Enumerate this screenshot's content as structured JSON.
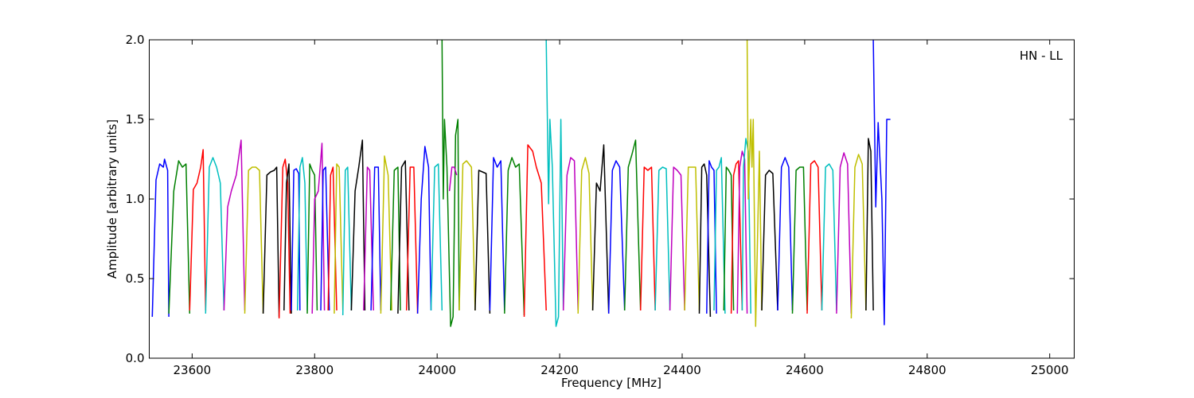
{
  "chart_data": {
    "type": "line",
    "title": "",
    "xlabel": "Frequency [MHz]",
    "ylabel": "Amplitude [arbitrary units]",
    "xlim": [
      23530,
      25040
    ],
    "ylim": [
      0.0,
      2.0
    ],
    "xticks": [
      "23600",
      "23800",
      "24000",
      "24200",
      "24400",
      "24600",
      "24800",
      "25000"
    ],
    "yticks": [
      "0.0",
      "0.5",
      "1.0",
      "1.5",
      "2.0"
    ],
    "grid": false,
    "annotation": "HN - LL",
    "colors": [
      "#0000ff",
      "#008000",
      "#ff0000",
      "#00bfbf",
      "#bf00bf",
      "#bfbf00",
      "#000000"
    ],
    "channel_width_mhz": 18.5,
    "series": [
      {
        "color": "#0000ff",
        "x": [
          23535,
          23541,
          23547,
          23553,
          23555,
          23560,
          23562
        ],
        "y": [
          0.26,
          1.12,
          1.22,
          1.2,
          1.25,
          1.18,
          0.26
        ]
      },
      {
        "color": "#008000",
        "x": [
          23562,
          23570,
          23578,
          23584,
          23590,
          23596
        ],
        "y": [
          0.28,
          1.05,
          1.24,
          1.2,
          1.22,
          0.28
        ]
      },
      {
        "color": "#ff0000",
        "x": [
          23596,
          23602,
          23608,
          23614,
          23618,
          23622
        ],
        "y": [
          0.3,
          1.06,
          1.1,
          1.2,
          1.31,
          0.3
        ]
      },
      {
        "color": "#00bfbf",
        "x": [
          23622,
          23628,
          23634,
          23640,
          23646,
          23652
        ],
        "y": [
          0.28,
          1.2,
          1.26,
          1.2,
          1.1,
          0.3
        ]
      },
      {
        "color": "#bf00bf",
        "x": [
          23652,
          23658,
          23664,
          23672,
          23680,
          23686
        ],
        "y": [
          0.3,
          0.95,
          1.05,
          1.15,
          1.37,
          0.3
        ]
      },
      {
        "color": "#bfbf00",
        "x": [
          23686,
          23692,
          23698,
          23704,
          23710,
          23716
        ],
        "y": [
          0.28,
          1.18,
          1.2,
          1.2,
          1.18,
          0.28
        ]
      },
      {
        "color": "#000000",
        "x": [
          23716,
          23722,
          23728,
          23734,
          23738,
          23742
        ],
        "y": [
          0.28,
          1.15,
          1.17,
          1.18,
          1.2,
          0.26
        ]
      },
      {
        "color": "#ff0000",
        "x": [
          23742,
          23748,
          23752,
          23756,
          23760
        ],
        "y": [
          0.25,
          1.2,
          1.25,
          1.1,
          0.28
        ]
      },
      {
        "color": "#000000",
        "x": [
          23750,
          23754,
          23758,
          23762
        ],
        "y": [
          0.3,
          1.1,
          1.22,
          0.28
        ]
      },
      {
        "color": "#0000ff",
        "x": [
          23762,
          23766,
          23770,
          23774,
          23776
        ],
        "y": [
          0.3,
          1.18,
          1.19,
          1.16,
          0.3
        ]
      },
      {
        "color": "#00bfbf",
        "x": [
          23772,
          23776,
          23780,
          23784,
          23788
        ],
        "y": [
          0.3,
          1.2,
          1.26,
          1.1,
          0.3
        ]
      },
      {
        "color": "#008000",
        "x": [
          23788,
          23792,
          23796,
          23800,
          23804
        ],
        "y": [
          0.28,
          1.22,
          1.18,
          1.15,
          0.3
        ]
      },
      {
        "color": "#bf00bf",
        "x": [
          23796,
          23800,
          23806,
          23812,
          23816
        ],
        "y": [
          0.28,
          1.0,
          1.05,
          1.35,
          0.3
        ]
      },
      {
        "color": "#0000ff",
        "x": [
          23810,
          23814,
          23818,
          23824
        ],
        "y": [
          0.3,
          1.18,
          1.2,
          0.3
        ]
      },
      {
        "color": "#ff0000",
        "x": [
          23822,
          23826,
          23830,
          23836
        ],
        "y": [
          0.3,
          1.15,
          1.2,
          0.3
        ]
      },
      {
        "color": "#bfbf00",
        "x": [
          23832,
          23836,
          23840,
          23846
        ],
        "y": [
          0.28,
          1.22,
          1.2,
          0.3
        ]
      },
      {
        "color": "#00bfbf",
        "x": [
          23846,
          23850,
          23854,
          23860
        ],
        "y": [
          0.27,
          1.18,
          1.2,
          0.3
        ]
      },
      {
        "color": "#000000",
        "x": [
          23860,
          23866,
          23872,
          23878,
          23882
        ],
        "y": [
          0.3,
          1.05,
          1.2,
          1.37,
          0.3
        ]
      },
      {
        "color": "#bf00bf",
        "x": [
          23880,
          23886,
          23890,
          23896
        ],
        "y": [
          0.3,
          1.2,
          1.18,
          0.3
        ]
      },
      {
        "color": "#0000ff",
        "x": [
          23892,
          23898,
          23904,
          23908
        ],
        "y": [
          0.3,
          1.2,
          1.2,
          0.3
        ]
      },
      {
        "color": "#bfbf00",
        "x": [
          23908,
          23914,
          23920,
          23926
        ],
        "y": [
          0.28,
          1.27,
          1.15,
          0.3
        ]
      },
      {
        "color": "#008000",
        "x": [
          23924,
          23930,
          23936,
          23940
        ],
        "y": [
          0.3,
          1.18,
          1.2,
          0.3
        ]
      },
      {
        "color": "#000000",
        "x": [
          23936,
          23942,
          23948,
          23954
        ],
        "y": [
          0.28,
          1.2,
          1.24,
          0.3
        ]
      },
      {
        "color": "#ff0000",
        "x": [
          23950,
          23956,
          23962,
          23968
        ],
        "y": [
          0.3,
          1.2,
          1.2,
          0.28
        ]
      },
      {
        "color": "#0000ff",
        "x": [
          23968,
          23974,
          23980,
          23986,
          23990
        ],
        "y": [
          0.28,
          1.0,
          1.33,
          1.2,
          0.3
        ]
      },
      {
        "color": "#00bfbf",
        "x": [
          23990,
          23996,
          24002,
          24008
        ],
        "y": [
          0.3,
          1.2,
          1.22,
          0.3
        ]
      },
      {
        "color": "#008000",
        "x": [
          24008,
          24010,
          24012,
          24016,
          24022,
          24026,
          24030,
          24034,
          24036
        ],
        "y": [
          2.0,
          1.0,
          1.5,
          1.2,
          0.2,
          0.26,
          1.4,
          1.5,
          0.3
        ]
      },
      {
        "color": "#bf00bf",
        "x": [
          24020,
          24024,
          24028,
          24032
        ],
        "y": [
          1.05,
          1.2,
          1.2,
          1.15
        ]
      },
      {
        "color": "#bfbf00",
        "x": [
          24036,
          24042,
          24048,
          24056,
          24062
        ],
        "y": [
          0.3,
          1.22,
          1.24,
          1.2,
          0.3
        ]
      },
      {
        "color": "#000000",
        "x": [
          24062,
          24068,
          24074,
          24080,
          24086
        ],
        "y": [
          0.3,
          1.18,
          1.17,
          1.16,
          0.28
        ]
      },
      {
        "color": "#0000ff",
        "x": [
          24086,
          24092,
          24098,
          24104,
          24110
        ],
        "y": [
          0.3,
          1.26,
          1.2,
          1.24,
          0.3
        ]
      },
      {
        "color": "#008000",
        "x": [
          24110,
          24116,
          24122,
          24128,
          24134,
          24142
        ],
        "y": [
          0.28,
          1.18,
          1.26,
          1.2,
          1.22,
          0.27
        ]
      },
      {
        "color": "#ff0000",
        "x": [
          24142,
          24148,
          24156,
          24162,
          24170,
          24178
        ],
        "y": [
          0.26,
          1.34,
          1.3,
          1.2,
          1.1,
          0.3
        ]
      },
      {
        "color": "#00bfbf",
        "x": [
          24178,
          24182,
          24184,
          24188,
          24194,
          24198,
          24202,
          24206
        ],
        "y": [
          2.0,
          0.97,
          1.5,
          1.2,
          0.2,
          0.26,
          1.5,
          0.3
        ]
      },
      {
        "color": "#bf00bf",
        "x": [
          24206,
          24212,
          24218,
          24224,
          24230
        ],
        "y": [
          0.3,
          1.15,
          1.26,
          1.24,
          0.3
        ]
      },
      {
        "color": "#bfbf00",
        "x": [
          24230,
          24236,
          24242,
          24248,
          24254
        ],
        "y": [
          0.28,
          1.18,
          1.26,
          1.16,
          0.3
        ]
      },
      {
        "color": "#000000",
        "x": [
          24254,
          24260,
          24266,
          24272,
          24280
        ],
        "y": [
          0.3,
          1.1,
          1.05,
          1.34,
          0.28
        ]
      },
      {
        "color": "#0000ff",
        "x": [
          24280,
          24286,
          24292,
          24298,
          24306
        ],
        "y": [
          0.28,
          1.18,
          1.24,
          1.2,
          0.3
        ]
      },
      {
        "color": "#008000",
        "x": [
          24306,
          24312,
          24318,
          24324,
          24332
        ],
        "y": [
          0.3,
          1.2,
          1.28,
          1.37,
          0.3
        ]
      },
      {
        "color": "#ff0000",
        "x": [
          24332,
          24338,
          24344,
          24350,
          24356
        ],
        "y": [
          0.3,
          1.2,
          1.18,
          1.2,
          0.3
        ]
      },
      {
        "color": "#00bfbf",
        "x": [
          24356,
          24362,
          24368,
          24374,
          24380
        ],
        "y": [
          0.3,
          1.18,
          1.2,
          1.19,
          0.3
        ]
      },
      {
        "color": "#bf00bf",
        "x": [
          24380,
          24386,
          24392,
          24398,
          24404
        ],
        "y": [
          0.3,
          1.2,
          1.18,
          1.15,
          0.3
        ]
      },
      {
        "color": "#bfbf00",
        "x": [
          24404,
          24410,
          24416,
          24422,
          24428
        ],
        "y": [
          0.3,
          1.2,
          1.2,
          1.2,
          0.3
        ]
      },
      {
        "color": "#000000",
        "x": [
          24428,
          24432,
          24436,
          24440,
          24446
        ],
        "y": [
          0.28,
          1.2,
          1.22,
          1.15,
          0.26
        ]
      },
      {
        "color": "#0000ff",
        "x": [
          24440,
          24444,
          24448,
          24452,
          24456
        ],
        "y": [
          0.28,
          1.24,
          1.2,
          1.18,
          0.28
        ]
      },
      {
        "color": "#00bfbf",
        "x": [
          24452,
          24456,
          24460,
          24464,
          24470
        ],
        "y": [
          0.3,
          1.18,
          1.2,
          1.26,
          0.28
        ]
      },
      {
        "color": "#008000",
        "x": [
          24468,
          24472,
          24476,
          24480,
          24484
        ],
        "y": [
          0.3,
          1.2,
          1.18,
          1.15,
          0.3
        ]
      },
      {
        "color": "#ff0000",
        "x": [
          24480,
          24484,
          24488,
          24492,
          24498
        ],
        "y": [
          0.28,
          1.15,
          1.22,
          1.24,
          0.3
        ]
      },
      {
        "color": "#bf00bf",
        "x": [
          24490,
          24494,
          24498,
          24502,
          24506
        ],
        "y": [
          0.28,
          1.2,
          1.3,
          1.25,
          0.28
        ]
      },
      {
        "color": "#00bfbf",
        "x": [
          24498,
          24500,
          24504,
          24508,
          24512
        ],
        "y": [
          0.3,
          1.2,
          1.38,
          1.3,
          0.28
        ]
      },
      {
        "color": "#bfbf00",
        "x": [
          24506,
          24508,
          24512,
          24514,
          24516,
          24520,
          24526,
          24530
        ],
        "y": [
          2.0,
          1.0,
          1.5,
          1.2,
          1.5,
          0.2,
          1.3,
          0.3
        ]
      },
      {
        "color": "#000000",
        "x": [
          24530,
          24536,
          24542,
          24548,
          24556
        ],
        "y": [
          0.3,
          1.15,
          1.18,
          1.16,
          0.3
        ]
      },
      {
        "color": "#0000ff",
        "x": [
          24556,
          24562,
          24568,
          24574,
          24580
        ],
        "y": [
          0.3,
          1.2,
          1.26,
          1.2,
          0.3
        ]
      },
      {
        "color": "#008000",
        "x": [
          24580,
          24586,
          24592,
          24598,
          24604
        ],
        "y": [
          0.28,
          1.18,
          1.2,
          1.2,
          0.3
        ]
      },
      {
        "color": "#ff0000",
        "x": [
          24604,
          24610,
          24616,
          24622,
          24628
        ],
        "y": [
          0.28,
          1.22,
          1.24,
          1.2,
          0.3
        ]
      },
      {
        "color": "#00bfbf",
        "x": [
          24628,
          24634,
          24640,
          24646,
          24652
        ],
        "y": [
          0.3,
          1.2,
          1.22,
          1.18,
          0.3
        ]
      },
      {
        "color": "#bf00bf",
        "x": [
          24652,
          24658,
          24664,
          24670,
          24676
        ],
        "y": [
          0.28,
          1.2,
          1.29,
          1.22,
          0.28
        ]
      },
      {
        "color": "#bfbf00",
        "x": [
          24676,
          24682,
          24688,
          24694,
          24700
        ],
        "y": [
          0.25,
          1.2,
          1.28,
          1.22,
          0.3
        ]
      },
      {
        "color": "#000000",
        "x": [
          24700,
          24704,
          24708,
          24712
        ],
        "y": [
          0.3,
          1.38,
          1.3,
          0.3
        ]
      },
      {
        "color": "#0000ff",
        "x": [
          24712,
          24716,
          24720,
          24726,
          24730,
          24734,
          24740
        ],
        "y": [
          2.0,
          0.95,
          1.48,
          1.0,
          0.21,
          1.5,
          1.5
        ]
      }
    ]
  }
}
